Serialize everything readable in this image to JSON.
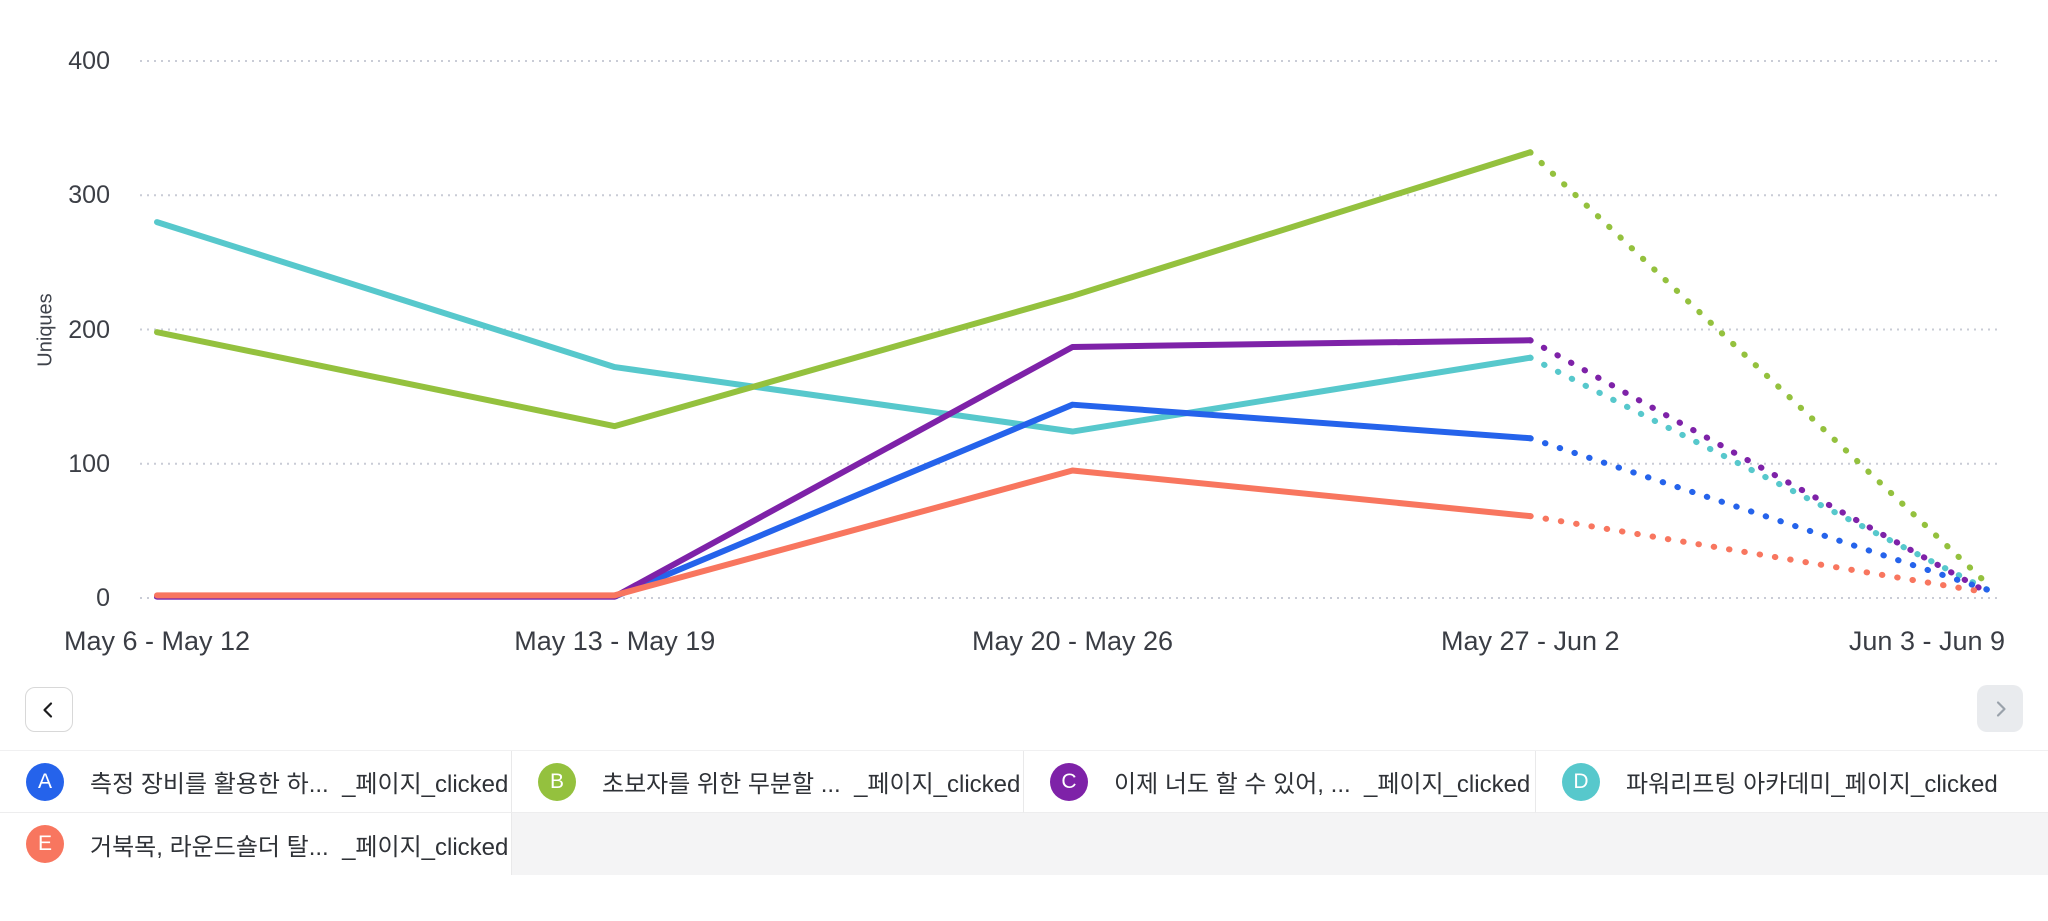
{
  "chart_data": {
    "type": "line",
    "title": "",
    "xlabel": "",
    "ylabel": "Uniques",
    "categories": [
      "May 6 - May 12",
      "May 13 - May 19",
      "May 20 - May 26",
      "May 27 - Jun 2",
      "Jun 3 - Jun 9"
    ],
    "yticks": [
      0,
      100,
      200,
      300,
      400
    ],
    "ylim": [
      0,
      430
    ],
    "grid": "dotted-horizontal",
    "legend_position": "bottom",
    "projection_from_index": 3,
    "series": [
      {
        "id": "A",
        "legend_label": "측정 장비를 활용한 하...  _페이지_clicked",
        "color": "#2563eb",
        "values": [
          1,
          1,
          144,
          119,
          6
        ]
      },
      {
        "id": "B",
        "legend_label": "초보자를 위한 무분할 ...  _페이지_clicked",
        "color": "#94c13e",
        "values": [
          198,
          128,
          225,
          332,
          10
        ]
      },
      {
        "id": "C",
        "legend_label": "이제 너도 할 수 있어, ...  _페이지_clicked",
        "color": "#7e22a8",
        "values": [
          1,
          1,
          187,
          192,
          4
        ]
      },
      {
        "id": "D",
        "legend_label": "파워리프팅 아카데미_페이지_clicked",
        "color": "#57c8cc",
        "values": [
          280,
          172,
          124,
          179,
          6
        ]
      },
      {
        "id": "E",
        "legend_label": "거북목, 라운드숄더 탈...  _페이지_clicked",
        "color": "#f8765f",
        "values": [
          2,
          2,
          95,
          61,
          4
        ]
      }
    ]
  },
  "nav": {
    "prev_enabled": true,
    "next_enabled": false
  },
  "colors": {
    "grid": "#c9ccd6",
    "axis_text": "#3c3f46",
    "legend_text": "#2f3237",
    "legend_divider": "#e9e9ea",
    "legend_empty_bg": "#f4f4f5",
    "prev_chevron": "#1c1c1e",
    "next_chevron": "#9aa2ab"
  }
}
